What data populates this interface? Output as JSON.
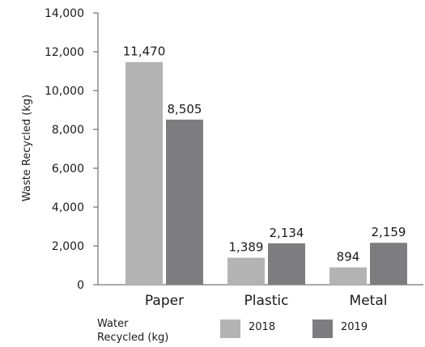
{
  "chart_data": {
    "type": "bar",
    "ylabel": "Waste Recycled (kg)",
    "ylim": [
      0,
      14000
    ],
    "yticks": [
      0,
      2000,
      4000,
      6000,
      8000,
      10000,
      12000,
      14000
    ],
    "ytick_labels": [
      "0",
      "2,000",
      "4,000",
      "6,000",
      "8,000",
      "10,000",
      "12,000",
      "14,000"
    ],
    "categories": [
      "Paper",
      "Plastic",
      "Metal"
    ],
    "series": [
      {
        "name": "2018",
        "values": [
          11470,
          1389,
          894
        ],
        "labels": [
          "11,470",
          "1,389",
          "894"
        ],
        "color": "#b3b3b3"
      },
      {
        "name": "2019",
        "values": [
          8505,
          2134,
          2159
        ],
        "labels": [
          "8,505",
          "2,134",
          "2,159"
        ],
        "color": "#7d7d7f"
      }
    ],
    "legend_title": "Water Recycled (kg)",
    "legend_title_lines": [
      "Water",
      "Recycled (kg)"
    ],
    "legend_position": "bottom",
    "grid": false
  }
}
